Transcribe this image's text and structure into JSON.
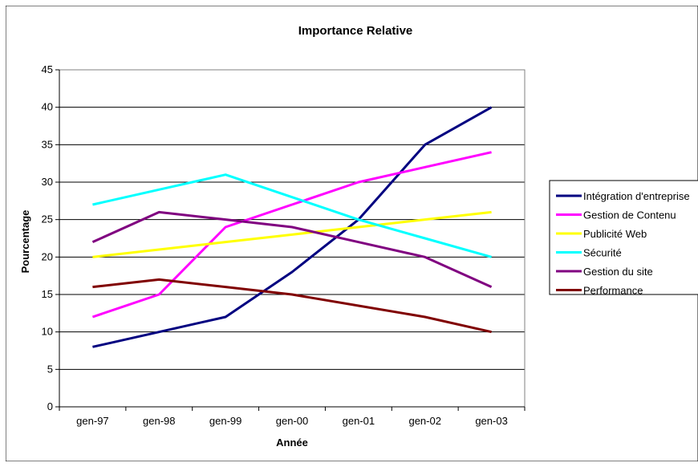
{
  "chart_data": {
    "type": "line",
    "title": "Importance Relative",
    "xlabel": "Année",
    "ylabel": "Pourcentage",
    "ylim": [
      0,
      45
    ],
    "yticks": [
      0,
      5,
      10,
      15,
      20,
      25,
      30,
      35,
      40,
      45
    ],
    "grid": "horizontal",
    "legend_position": "right",
    "categories": [
      "gen-97",
      "gen-98",
      "gen-99",
      "gen-00",
      "gen-01",
      "gen-02",
      "gen-03"
    ],
    "series": [
      {
        "name": "Intégration d'entreprise",
        "color": "#000080",
        "values": [
          8,
          10,
          12,
          18,
          25,
          35,
          40
        ]
      },
      {
        "name": "Gestion de Contenu",
        "color": "#ff00ff",
        "values": [
          12,
          15,
          24,
          27,
          30,
          32,
          34
        ]
      },
      {
        "name": "Publicité Web",
        "color": "#ffff00",
        "values": [
          20,
          21,
          22,
          23,
          24,
          25,
          26
        ]
      },
      {
        "name": "Sécurité",
        "color": "#00ffff",
        "values": [
          27,
          29,
          31,
          28,
          25,
          22.5,
          20
        ]
      },
      {
        "name": "Gestion du site",
        "color": "#800080",
        "values": [
          22,
          26,
          25,
          24,
          22,
          20,
          16
        ]
      },
      {
        "name": "Performance",
        "color": "#800000",
        "values": [
          16,
          17,
          16,
          15,
          13.5,
          12,
          10
        ]
      }
    ]
  }
}
